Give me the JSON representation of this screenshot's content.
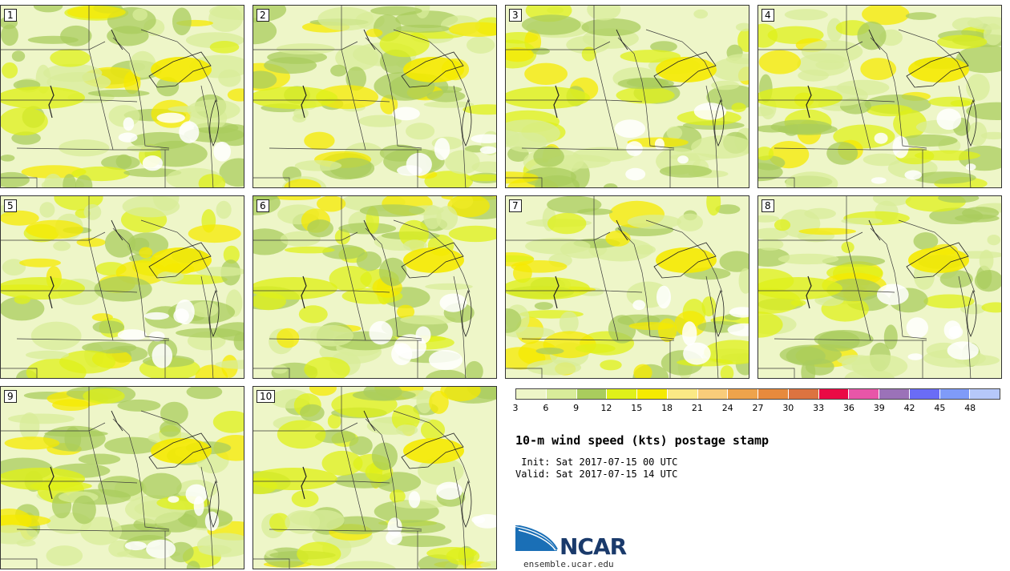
{
  "panels": [
    {
      "label": "1"
    },
    {
      "label": "2"
    },
    {
      "label": "3"
    },
    {
      "label": "4"
    },
    {
      "label": "5"
    },
    {
      "label": "6"
    },
    {
      "label": "7"
    },
    {
      "label": "8"
    },
    {
      "label": "9"
    },
    {
      "label": "10"
    }
  ],
  "legend": {
    "colors": [
      "#eef6c8",
      "#d8ec9a",
      "#a9cc5d",
      "#dff01a",
      "#f5ea00",
      "#fbe985",
      "#f9cc7a",
      "#eea34b",
      "#e78a3d",
      "#dc7340",
      "#ea0a45",
      "#e856a8",
      "#9b72b8",
      "#6a6cf6",
      "#7f9bf8",
      "#b6c8fa"
    ],
    "ticks": [
      "3",
      "6",
      "9",
      "12",
      "15",
      "18",
      "21",
      "24",
      "27",
      "30",
      "33",
      "36",
      "39",
      "42",
      "45",
      "48"
    ]
  },
  "title": "10-m wind speed (kts) postage stamp",
  "init": " Init: Sat 2017-07-15 00 UTC",
  "valid": "Valid: Sat 2017-07-15 14 UTC",
  "logo": {
    "text": "NCAR",
    "site": "ensemble.ucar.edu",
    "colors": {
      "blue": "#1a6fb6",
      "dark": "#1a3a6b"
    }
  }
}
